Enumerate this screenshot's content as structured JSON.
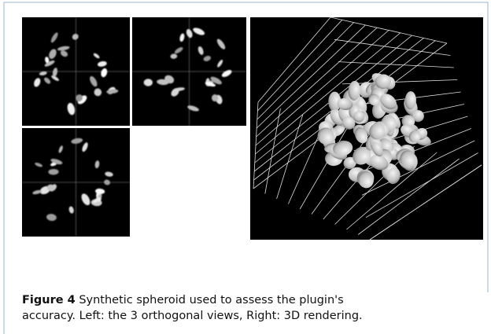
{
  "figure": {
    "label": "Figure 4",
    "caption_line1": "Synthetic spheroid used to assess the plugin's",
    "caption_line2": "accuracy. Left: the 3 orthogonal views, Right: 3D rendering."
  }
}
